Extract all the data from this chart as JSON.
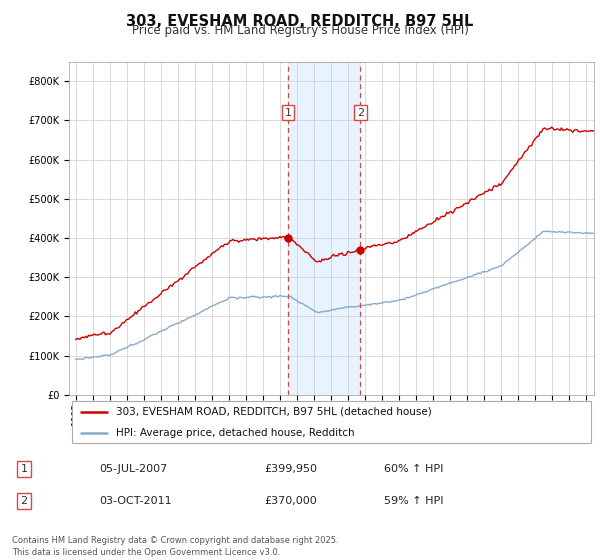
{
  "title": "303, EVESHAM ROAD, REDDITCH, B97 5HL",
  "subtitle": "Price paid vs. HM Land Registry's House Price Index (HPI)",
  "background_color": "#ffffff",
  "plot_bg_color": "#ffffff",
  "grid_color": "#cccccc",
  "red_line_color": "#cc0000",
  "blue_line_color": "#88aacc",
  "sale1_date_str": "05-JUL-2007",
  "sale1_price": 399950,
  "sale1_hpi_pct": "60% ↑ HPI",
  "sale1_year": 2007.5,
  "sale2_date_str": "03-OCT-2011",
  "sale2_price": 370000,
  "sale2_hpi_pct": "59% ↑ HPI",
  "sale2_year": 2011.75,
  "legend_line1": "303, EVESHAM ROAD, REDDITCH, B97 5HL (detached house)",
  "legend_line2": "HPI: Average price, detached house, Redditch",
  "footer": "Contains HM Land Registry data © Crown copyright and database right 2025.\nThis data is licensed under the Open Government Licence v3.0.",
  "ylim_max": 850000,
  "span_color": "#ddeeff",
  "vline_color": "#dd4444"
}
